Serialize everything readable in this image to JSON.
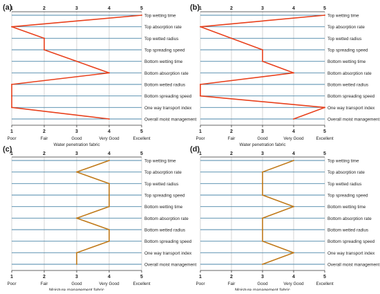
{
  "chart_data": [
    {
      "panel_label": "(a)",
      "type": "line",
      "x_ticks": [
        "1",
        "2",
        "3",
        "4",
        "5"
      ],
      "x_grades": [
        "Poor",
        "Fair",
        "Good",
        "Very Good",
        "Excellent"
      ],
      "xlabel": "Water penetration fabric",
      "xlim": [
        1,
        5
      ],
      "categories": [
        "Top wetting time",
        "Top absorption rate",
        "Top wetted radius",
        "Top spreading speed",
        "Bottom wetting time",
        "Bottom absorption rate",
        "Bottom wetted radius",
        "Bottom spreading speed",
        "One way transport index",
        "Overall moist management"
      ],
      "series_color": "#e8401c",
      "values": [
        5,
        1,
        2,
        2,
        3,
        4,
        1,
        1,
        1,
        4
      ]
    },
    {
      "panel_label": "(b)",
      "type": "line",
      "x_ticks": [
        "1",
        "2",
        "3",
        "4",
        "5"
      ],
      "x_grades": [
        "Poor",
        "Fair",
        "Good",
        "Very Good",
        "Excellent"
      ],
      "xlabel": "Water penetration fabric",
      "xlim": [
        1,
        5
      ],
      "categories": [
        "Top wetting time",
        "Top absorption rate",
        "Top wetted radius",
        "Top spreading speed",
        "Bottom wetting time",
        "Bottom absorption rate",
        "Bottom wetted radius",
        "Bottom spreading speed",
        "One way transport index",
        "Overall moist management"
      ],
      "series_color": "#e8401c",
      "values": [
        5,
        1,
        2,
        3,
        3,
        4,
        1,
        1,
        5,
        4
      ]
    },
    {
      "panel_label": "(c)",
      "type": "line",
      "x_ticks": [
        "1",
        "2",
        "3",
        "4",
        "5"
      ],
      "x_grades": [
        "Poor",
        "Fair",
        "Good",
        "Very Good",
        "Excellent"
      ],
      "xlabel": "Moisture management fabric",
      "xlim": [
        1,
        5
      ],
      "categories": [
        "Top wetting time",
        "Top absorption rate",
        "Top wetted radius",
        "Top spreading speed",
        "Bottom wetting time",
        "Bottom absorption rate",
        "Bottom wetted radius",
        "Bottom spreading speed",
        "One way transport index",
        "Overall moist management"
      ],
      "series_color": "#c07a1a",
      "values": [
        4,
        3,
        4,
        4,
        4,
        3,
        4,
        4,
        3,
        3
      ]
    },
    {
      "panel_label": "(d)",
      "type": "line",
      "x_ticks": [
        "1",
        "2",
        "3",
        "4",
        "5"
      ],
      "x_grades": [
        "Poor",
        "Fair",
        "Good",
        "Very Good",
        "Excellent"
      ],
      "xlabel": "Moisture management fabric",
      "xlim": [
        1,
        5
      ],
      "categories": [
        "Top wetting time",
        "Top absorption rate",
        "Top wetted radius",
        "Top spreading speed",
        "Bottom wetting time",
        "Bottom absorption rate",
        "Bottom wetted radius",
        "Bottom spreading speed",
        "One way transport index",
        "Overall moist management"
      ],
      "series_color": "#c07a1a",
      "values": [
        4,
        3,
        3,
        3,
        4,
        3,
        3,
        3,
        4,
        3
      ]
    }
  ],
  "colors": {
    "hline": "#4a86a8",
    "vgrid": "#b8b8b8",
    "axis": "#333333",
    "text": "#222222"
  }
}
